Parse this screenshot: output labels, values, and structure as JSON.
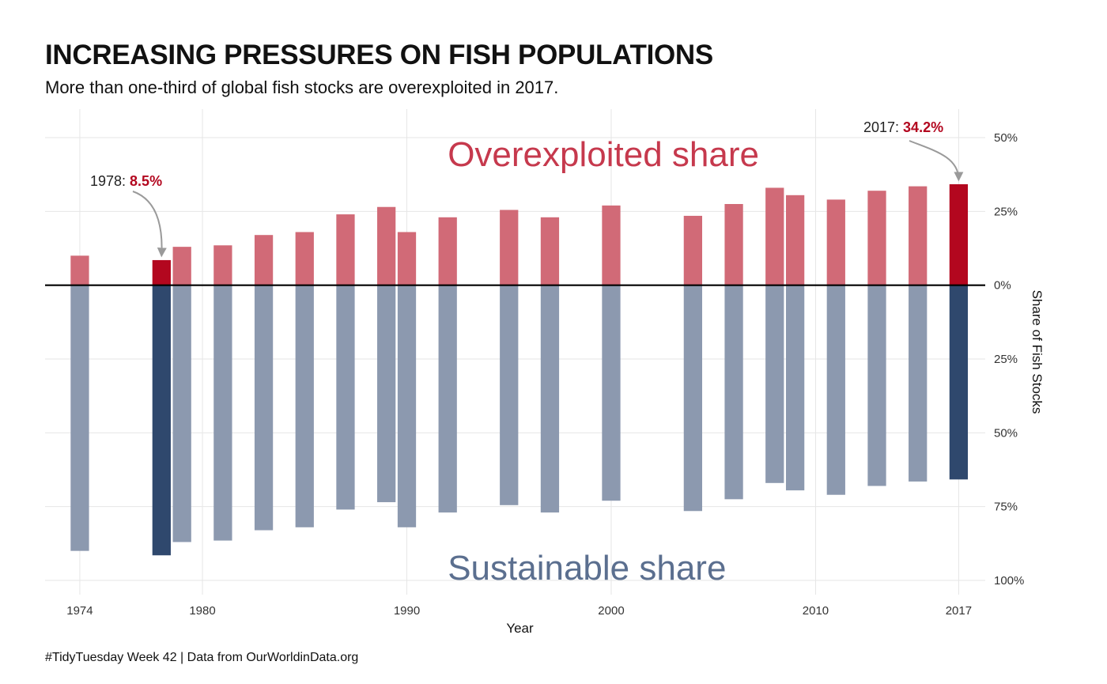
{
  "title": "INCREASING PRESSURES ON FISH POPULATIONS",
  "subtitle": "More than one-third of global fish stocks are overexploited in 2017.",
  "caption": "#TidyTuesday Week 42 | Data from OurWorldinData.org",
  "colors": {
    "over": "#d16a77",
    "over_highlight": "#b3071f",
    "sus": "#8c99af",
    "sus_highlight": "#2f486d",
    "zero_line": "#000000",
    "grid": "#e6e6e6"
  },
  "chart_data": {
    "type": "bar",
    "xlabel": "Year",
    "ylabel": "Share of Fish Stocks",
    "xlim": [
      1972.3,
      2018.3
    ],
    "ylim": [
      -100,
      50
    ],
    "x_ticks": [
      1974,
      1980,
      1990,
      2000,
      2010,
      2017
    ],
    "y_ticks": [
      {
        "value": 50,
        "label": "50%"
      },
      {
        "value": 25,
        "label": "25%"
      },
      {
        "value": 0,
        "label": "0%"
      },
      {
        "value": -25,
        "label": "25%"
      },
      {
        "value": -50,
        "label": "50%"
      },
      {
        "value": -75,
        "label": "75%"
      },
      {
        "value": -100,
        "label": "100%"
      }
    ],
    "region_labels": {
      "over": "Overexploited share",
      "sus": "Sustainable share"
    },
    "highlight_years": [
      1978,
      2017
    ],
    "series": [
      {
        "name": "Overexploited share",
        "x": [
          1974,
          1978,
          1979,
          1981,
          1983,
          1985,
          1987,
          1989,
          1990,
          1992,
          1995,
          1997,
          2000,
          2004,
          2006,
          2008,
          2009,
          2011,
          2013,
          2015,
          2017
        ],
        "values": [
          10,
          8.5,
          13,
          13.5,
          17,
          18,
          24,
          26.5,
          18,
          23,
          25.5,
          23,
          27,
          23.5,
          27.5,
          33,
          30.5,
          29,
          32,
          33.5,
          34.2
        ]
      },
      {
        "name": "Sustainable share",
        "x": [
          1974,
          1978,
          1979,
          1981,
          1983,
          1985,
          1987,
          1989,
          1990,
          1992,
          1995,
          1997,
          2000,
          2004,
          2006,
          2008,
          2009,
          2011,
          2013,
          2015,
          2017
        ],
        "values": [
          90,
          91.5,
          87,
          86.5,
          83,
          82,
          76,
          73.5,
          82,
          77,
          74.5,
          77,
          73,
          76.5,
          72.5,
          67,
          69.5,
          71,
          68,
          66.5,
          65.8
        ]
      }
    ],
    "annotations": [
      {
        "x": 1978,
        "prefix": "1978: ",
        "value": "8.5%"
      },
      {
        "x": 2017,
        "prefix": "2017: ",
        "value": "34.2%"
      }
    ]
  }
}
